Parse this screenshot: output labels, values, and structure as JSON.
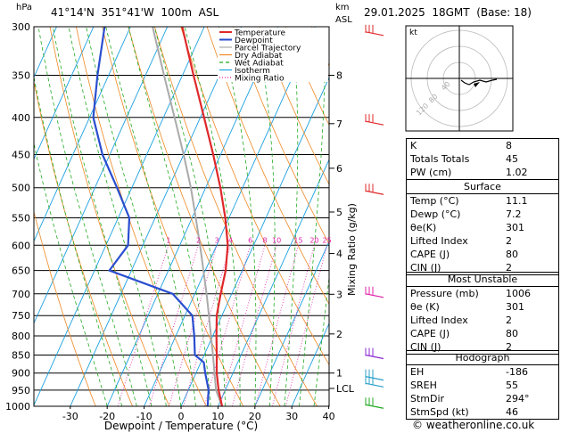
{
  "header": {
    "location": "41°14'N  351°41'W  100m  ASL",
    "datetime": "29.01.2025  18GMT  (Base: 18)",
    "hpa_label": "hPa",
    "km_label": "km",
    "asl_label": "ASL"
  },
  "chart_data": {
    "type": "skew-t log-p",
    "xlabel": "Dewpoint / Temperature (°C)",
    "ylabel_right": "Mixing Ratio (g/kg)",
    "x_ticks": [
      -30,
      -20,
      -10,
      0,
      10,
      20,
      30,
      40
    ],
    "pressure_levels": [
      300,
      350,
      400,
      450,
      500,
      550,
      600,
      650,
      700,
      750,
      800,
      850,
      900,
      950,
      1000
    ],
    "height_ticks": [
      {
        "label": "8",
        "p": 350
      },
      {
        "label": "7",
        "p": 408
      },
      {
        "label": "6",
        "p": 470
      },
      {
        "label": "5",
        "p": 540
      },
      {
        "label": "4",
        "p": 616
      },
      {
        "label": "3",
        "p": 701
      },
      {
        "label": "2",
        "p": 795
      },
      {
        "label": "1",
        "p": 900
      },
      {
        "label": "LCL",
        "p": 945
      }
    ],
    "mixing_ratio_labels": [
      "1",
      "2",
      "3",
      "4",
      "6",
      "8",
      "10",
      "15",
      "20",
      "25"
    ],
    "mixing_ratios": [
      1,
      2,
      3,
      4,
      6,
      8,
      10,
      15,
      20,
      25
    ],
    "legend": [
      "Temperature",
      "Dewpoint",
      "Parcel Trajectory",
      "Dry Adiabat",
      "Wet Adiabat",
      "Isotherm",
      "Mixing Ratio"
    ],
    "colors": {
      "temperature": "#e0282a",
      "dewpoint": "#2a4ecf",
      "parcel": "#aaaaaa",
      "dry_adiabat": "#ee8822",
      "wet_adiabat": "#22aa22",
      "isotherm": "#1aa0e0",
      "mixing_ratio": "#e020a8"
    },
    "temperature": [
      {
        "p": 1000,
        "t": 11.1
      },
      {
        "p": 950,
        "t": 8.2
      },
      {
        "p": 900,
        "t": 5.6
      },
      {
        "p": 850,
        "t": 3.4
      },
      {
        "p": 800,
        "t": 1.0
      },
      {
        "p": 750,
        "t": -1.4
      },
      {
        "p": 700,
        "t": -3.0
      },
      {
        "p": 650,
        "t": -4.5
      },
      {
        "p": 600,
        "t": -7.0
      },
      {
        "p": 550,
        "t": -11.0
      },
      {
        "p": 500,
        "t": -16.0
      },
      {
        "p": 450,
        "t": -22.0
      },
      {
        "p": 400,
        "t": -29.0
      },
      {
        "p": 350,
        "t": -37.0
      },
      {
        "p": 300,
        "t": -46.0
      }
    ],
    "dewpoint": [
      {
        "p": 1000,
        "t": 7.2
      },
      {
        "p": 950,
        "t": 5.5
      },
      {
        "p": 900,
        "t": 2.5
      },
      {
        "p": 870,
        "t": 0.8
      },
      {
        "p": 850,
        "t": -2.5
      },
      {
        "p": 800,
        "t": -5.0
      },
      {
        "p": 750,
        "t": -8.0
      },
      {
        "p": 700,
        "t": -16.0
      },
      {
        "p": 650,
        "t": -36.0
      },
      {
        "p": 600,
        "t": -34.0
      },
      {
        "p": 550,
        "t": -37.0
      },
      {
        "p": 500,
        "t": -44.0
      },
      {
        "p": 450,
        "t": -52.0
      },
      {
        "p": 400,
        "t": -59.0
      },
      {
        "p": 350,
        "t": -63.0
      },
      {
        "p": 300,
        "t": -67.0
      }
    ],
    "parcel": [
      {
        "p": 1000,
        "t": 11.1
      },
      {
        "p": 950,
        "t": 7.5
      },
      {
        "p": 900,
        "t": 5.0
      },
      {
        "p": 850,
        "t": 2.4
      },
      {
        "p": 800,
        "t": -0.5
      },
      {
        "p": 750,
        "t": -3.5
      },
      {
        "p": 700,
        "t": -6.8
      },
      {
        "p": 650,
        "t": -10.5
      },
      {
        "p": 600,
        "t": -14.5
      },
      {
        "p": 550,
        "t": -19.0
      },
      {
        "p": 500,
        "t": -24.0
      },
      {
        "p": 450,
        "t": -30.0
      },
      {
        "p": 400,
        "t": -37.0
      },
      {
        "p": 350,
        "t": -45.0
      },
      {
        "p": 300,
        "t": -54.0
      }
    ]
  },
  "hodograph": {
    "label": "kt",
    "ring_labels": [
      "40",
      "80",
      "120"
    ]
  },
  "indices": [
    {
      "name": "K",
      "value": "8"
    },
    {
      "name": "Totals Totals",
      "value": "45"
    },
    {
      "name": "PW (cm)",
      "value": "1.02"
    }
  ],
  "surface": {
    "title": "Surface",
    "rows": [
      {
        "name": "Temp (°C)",
        "value": "11.1"
      },
      {
        "name": "Dewp (°C)",
        "value": "7.2"
      },
      {
        "name": "θe(K)",
        "value": "301"
      },
      {
        "name": "Lifted Index",
        "value": "2"
      },
      {
        "name": "CAPE (J)",
        "value": "80"
      },
      {
        "name": "CIN (J)",
        "value": "2"
      }
    ]
  },
  "most_unstable": {
    "title": "Most Unstable",
    "rows": [
      {
        "name": "Pressure (mb)",
        "value": "1006"
      },
      {
        "name": "θe (K)",
        "value": "301"
      },
      {
        "name": "Lifted Index",
        "value": "2"
      },
      {
        "name": "CAPE (J)",
        "value": "80"
      },
      {
        "name": "CIN (J)",
        "value": "2"
      }
    ]
  },
  "hodograph_table": {
    "title": "Hodograph",
    "rows": [
      {
        "name": "EH",
        "value": "-186"
      },
      {
        "name": "SREH",
        "value": "55"
      },
      {
        "name": "StmDir",
        "value": "294°"
      },
      {
        "name": "StmSpd (kt)",
        "value": "46"
      }
    ]
  },
  "footer": {
    "copyright": "© weatheronline.co.uk"
  }
}
